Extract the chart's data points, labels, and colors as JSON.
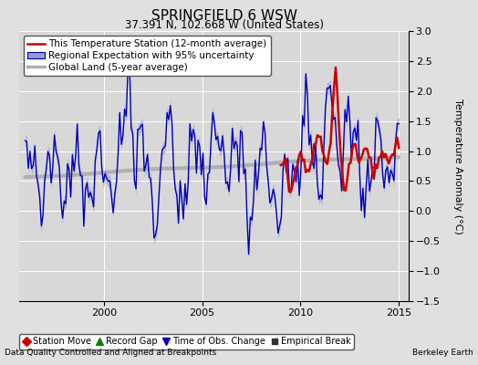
{
  "title": "SPRINGFIELD 6 WSW",
  "subtitle": "37.391 N, 102.668 W (United States)",
  "ylabel": "Temperature Anomaly (°C)",
  "xlabel_left": "Data Quality Controlled and Aligned at Breakpoints",
  "xlabel_right": "Berkeley Earth",
  "ylim": [
    -1.5,
    3.0
  ],
  "xlim": [
    1995.7,
    2015.5
  ],
  "yticks": [
    -1.5,
    -1.0,
    -0.5,
    0.0,
    0.5,
    1.0,
    1.5,
    2.0,
    2.5,
    3.0
  ],
  "xticks": [
    2000,
    2005,
    2010,
    2015
  ],
  "bg_color": "#e0e0e0",
  "plot_bg_color": "#d8d8d8",
  "red_color": "#cc0000",
  "blue_color": "#0000bb",
  "blue_fill_color": "#9999cc",
  "gray_color": "#b0b0b0",
  "grid_color": "#ffffff",
  "title_fontsize": 11,
  "subtitle_fontsize": 8.5,
  "tick_fontsize": 8,
  "ylabel_fontsize": 8,
  "legend_fontsize": 7.5,
  "marker_legend_fontsize": 7
}
